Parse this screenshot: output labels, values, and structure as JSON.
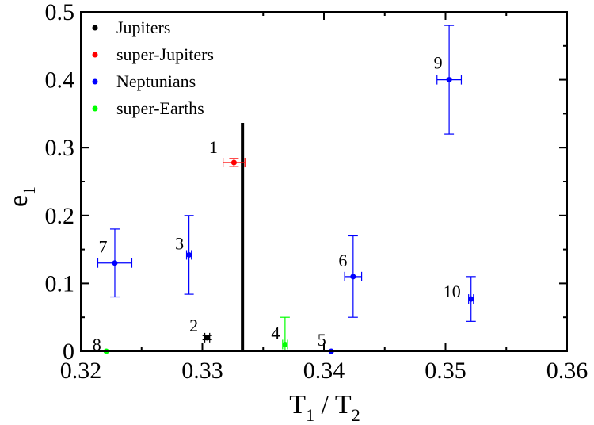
{
  "chart_data": {
    "type": "scatter",
    "title": "",
    "xlim": [
      0.32,
      0.36
    ],
    "ylim": [
      0,
      0.5
    ],
    "x_ticks": [
      "0.32",
      "0.33",
      "0.34",
      "0.35",
      "0.36"
    ],
    "y_ticks": [
      "0",
      "0.1",
      "0.2",
      "0.3",
      "0.4",
      "0.5"
    ],
    "x_tick_values": [
      0.32,
      0.33,
      0.34,
      0.35,
      0.36
    ],
    "y_tick_values": [
      0,
      0.1,
      0.2,
      0.3,
      0.4,
      0.5
    ],
    "xlabel": {
      "main": "T",
      "sub1": "1",
      "slash": " / T",
      "sub2": "2"
    },
    "ylabel": {
      "main": "e",
      "sub": "1"
    },
    "grid": false,
    "legend_placement": "top-left",
    "vertical_line_x": 0.3333,
    "series": [
      {
        "name": "Jupiters",
        "color": "#000000",
        "points": [
          {
            "label": "2",
            "x": 0.3304,
            "y": 0.02,
            "xerr": 0.0002,
            "yerr": 0.003
          }
        ]
      },
      {
        "name": "super-Jupiters",
        "color": "#ff0000",
        "points": [
          {
            "label": "1",
            "x": 0.3326,
            "y": 0.278,
            "xerr": 0.0009,
            "yerr": 0.006
          }
        ]
      },
      {
        "name": "Neptunians",
        "color": "#0000ff",
        "points": [
          {
            "label": "3",
            "x": 0.3289,
            "y": 0.142,
            "xerr": 0.0002,
            "yerr": 0.058
          },
          {
            "label": "5",
            "x": 0.3406,
            "y": 0.0,
            "xerr": 0.0,
            "yerr": 0.0
          },
          {
            "label": "6",
            "x": 0.3424,
            "y": 0.11,
            "xerr": 0.0007,
            "yerr": 0.06
          },
          {
            "label": "7",
            "x": 0.3228,
            "y": 0.13,
            "xerr": 0.0014,
            "yerr": 0.05
          },
          {
            "label": "9",
            "x": 0.3503,
            "y": 0.4,
            "xerr": 0.001,
            "yerr": 0.08
          },
          {
            "label": "10",
            "x": 0.3521,
            "y": 0.077,
            "xerr": 0.0002,
            "yerr": 0.033
          }
        ]
      },
      {
        "name": "super-Earths",
        "color": "#00ff00",
        "points": [
          {
            "label": "4",
            "x": 0.3368,
            "y": 0.01,
            "xerr": 0.0002,
            "yerr": 0.04
          },
          {
            "label": "8",
            "x": 0.3221,
            "y": 0.0,
            "xerr": 0.0,
            "yerr": 0.0
          }
        ]
      }
    ]
  }
}
